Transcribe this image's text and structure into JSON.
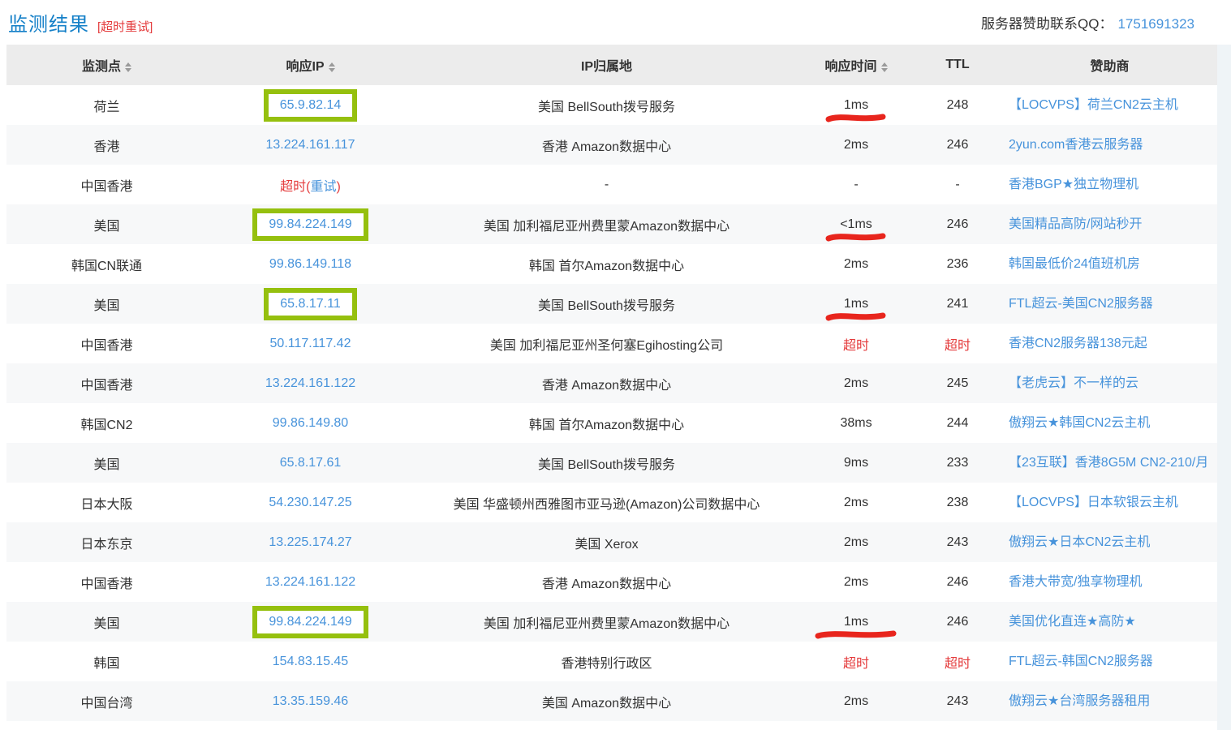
{
  "page": {
    "title": "监测结果",
    "retry_all_label": "[超时重试]",
    "qq_label": "服务器赞助联系QQ：",
    "qq_number": "1751691323"
  },
  "colors": {
    "title_blue": "#1580c8",
    "link_blue": "#4793db",
    "alert_red": "#e43b3c",
    "marker_red": "#e8251d",
    "highlight_green": "#95c00e",
    "header_bg": "#ececec",
    "even_row_bg": "#f7f8f9"
  },
  "table": {
    "columns": [
      {
        "key": "node",
        "label": "监测点",
        "sortable": true
      },
      {
        "key": "ip",
        "label": "响应IP",
        "sortable": true
      },
      {
        "key": "location",
        "label": "IP归属地",
        "sortable": false
      },
      {
        "key": "time",
        "label": "响应时间",
        "sortable": true
      },
      {
        "key": "ttl",
        "label": "TTL",
        "sortable": false
      },
      {
        "key": "sponsor",
        "label": "赞助商",
        "sortable": false
      }
    ],
    "rows": [
      {
        "node": "荷兰",
        "ip": "65.9.82.14",
        "ip_highlight": true,
        "location": "美国 BellSouth拨号服务",
        "time": "1ms",
        "time_marker": true,
        "ttl": "248",
        "sponsor": "【LOCVPS】荷兰CN2云主机"
      },
      {
        "node": "香港",
        "ip": "13.224.161.117",
        "location": "香港 Amazon数据中心",
        "time": "2ms",
        "ttl": "246",
        "sponsor": "2yun.com香港云服务器"
      },
      {
        "node": "中国香港",
        "ip_timeout_parts": [
          "超时(",
          "重试",
          ")"
        ],
        "location": "-",
        "time": "-",
        "ttl": "-",
        "sponsor": "香港BGP★独立物理机"
      },
      {
        "node": "美国",
        "ip": "99.84.224.149",
        "ip_highlight": true,
        "location": "美国 加利福尼亚州费里蒙Amazon数据中心",
        "time": "<1ms",
        "time_marker": true,
        "ttl": "246",
        "sponsor": "美国精品高防/网站秒开"
      },
      {
        "node": "韩国CN联通",
        "ip": "99.86.149.118",
        "location": "韩国 首尔Amazon数据中心",
        "time": "2ms",
        "ttl": "236",
        "sponsor": "韩国最低价24值班机房"
      },
      {
        "node": "美国",
        "ip": "65.8.17.11",
        "ip_highlight": true,
        "location": "美国 BellSouth拨号服务",
        "time": "1ms",
        "time_marker": true,
        "ttl": "241",
        "sponsor": "FTL超云-美国CN2服务器"
      },
      {
        "node": "中国香港",
        "ip": "50.117.117.42",
        "location": "美国 加利福尼亚州圣何塞Egihosting公司",
        "time": "超时",
        "time_timeout": true,
        "ttl": "超时",
        "ttl_timeout": true,
        "sponsor": "香港CN2服务器138元起"
      },
      {
        "node": "中国香港",
        "ip": "13.224.161.122",
        "location": "香港 Amazon数据中心",
        "time": "2ms",
        "ttl": "245",
        "sponsor": "【老虎云】不一样的云"
      },
      {
        "node": "韩国CN2",
        "ip": "99.86.149.80",
        "location": "韩国 首尔Amazon数据中心",
        "time": "38ms",
        "ttl": "244",
        "sponsor": "傲翔云★韩国CN2云主机"
      },
      {
        "node": "美国",
        "ip": "65.8.17.61",
        "location": "美国 BellSouth拨号服务",
        "time": "9ms",
        "ttl": "233",
        "sponsor": "【23互联】香港8G5M CN2-210/月"
      },
      {
        "node": "日本大阪",
        "ip": "54.230.147.25",
        "location": "美国 华盛顿州西雅图市亚马逊(Amazon)公司数据中心",
        "time": "2ms",
        "ttl": "238",
        "sponsor": "【LOCVPS】日本软银云主机"
      },
      {
        "node": "日本东京",
        "ip": "13.225.174.27",
        "location": "美国 Xerox",
        "time": "2ms",
        "ttl": "243",
        "sponsor": "傲翔云★日本CN2云主机"
      },
      {
        "node": "中国香港",
        "ip": "13.224.161.122",
        "location": "香港 Amazon数据中心",
        "time": "2ms",
        "ttl": "246",
        "sponsor": "香港大带宽/独享物理机"
      },
      {
        "node": "美国",
        "ip": "99.84.224.149",
        "ip_highlight": true,
        "location": "美国 加利福尼亚州费里蒙Amazon数据中心",
        "time": "1ms",
        "time_marker": true,
        "marker_long": true,
        "ttl": "246",
        "sponsor": "美国优化直连★高防★"
      },
      {
        "node": "韩国",
        "ip": "154.83.15.45",
        "location": "香港特别行政区",
        "time": "超时",
        "time_timeout": true,
        "ttl": "超时",
        "ttl_timeout": true,
        "sponsor": "FTL超云-韩国CN2服务器"
      },
      {
        "node": "中国台湾",
        "ip": "13.35.159.46",
        "location": "美国 Amazon数据中心",
        "time": "2ms",
        "ttl": "243",
        "sponsor": "傲翔云★台湾服务器租用"
      }
    ]
  }
}
